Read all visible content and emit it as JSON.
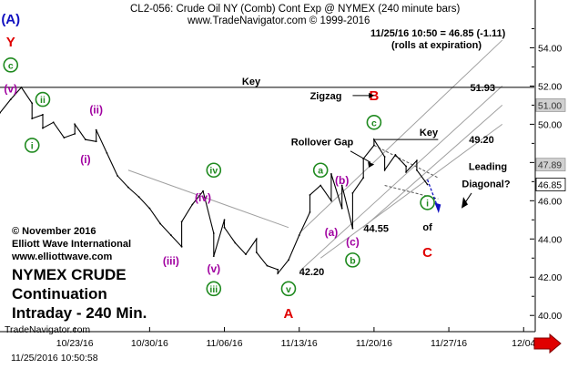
{
  "header": {
    "title": "CL2-056:  Crude Oil NY (Comb) Cont Exp @ NYMEX  (240 minute bars)",
    "copyright": "www.TradeNavigator.com © 1999-2016",
    "last_bar": "11/25/16 10:50 = 46.85 (-1.11)",
    "rolls": "(rolls at expiration)"
  },
  "footer": {
    "brand": "TradeNavigator.com",
    "timestamp": "11/25/2016 10:50:58"
  },
  "credits": {
    "line1": "© November 2016",
    "line2": "Elliott Wave International",
    "line3": "www.elliottwave.com"
  },
  "big_title": {
    "line1": "NYMEX CRUDE",
    "line2": "Continuation",
    "line3": "Intraday - 240 Min."
  },
  "colors": {
    "price_line": "#000000",
    "green_label": "#1f8a1f",
    "magenta_label": "#a000a0",
    "red_label": "#e00000",
    "blue_label": "#1010c0",
    "channel": "#a0a0a0",
    "price_box": "#d0d0d0"
  },
  "chart_data": {
    "type": "line",
    "x_axis": {
      "tick_labels": [
        "10/23/16",
        "10/30/16",
        "11/06/16",
        "11/13/16",
        "11/20/16",
        "11/27/16",
        "12/04"
      ],
      "tick_x": [
        "2016-10-23",
        "2016-10-30",
        "2016-11-06",
        "2016-11-13",
        "2016-11-20",
        "2016-11-27",
        "2016-12-04"
      ],
      "xlim": [
        "2016-10-16",
        "2016-12-05"
      ]
    },
    "y_axis": {
      "tick_labels": [
        "40.00",
        "42.00",
        "44.00",
        "46.00",
        "48.00",
        "50.00",
        "52.00",
        "54.00"
      ],
      "ticks": [
        40,
        42,
        44,
        46,
        48,
        50,
        52,
        54
      ],
      "ylim": [
        39.2,
        56.5
      ]
    },
    "series": [
      {
        "x": [
          "2016-10-16",
          "2016-10-17",
          "2016-10-18",
          "2016-10-19",
          "2016-10-19",
          "2016-10-20",
          "2016-10-20",
          "2016-10-21",
          "2016-10-22",
          "2016-10-23",
          "2016-10-23",
          "2016-10-24",
          "2016-10-25",
          "2016-10-25",
          "2016-10-26",
          "2016-10-27",
          "2016-10-28",
          "2016-10-29",
          "2016-10-30",
          "2016-10-31",
          "2016-11-01",
          "2016-11-02",
          "2016-11-02",
          "2016-11-03",
          "2016-11-04",
          "2016-11-05",
          "2016-11-05",
          "2016-11-06",
          "2016-11-06",
          "2016-11-07",
          "2016-11-08",
          "2016-11-09",
          "2016-11-09",
          "2016-11-10",
          "2016-11-11",
          "2016-11-11",
          "2016-11-12",
          "2016-11-13",
          "2016-11-14",
          "2016-11-14",
          "2016-11-15",
          "2016-11-16",
          "2016-11-16",
          "2016-11-17",
          "2016-11-17",
          "2016-11-18",
          "2016-11-18",
          "2016-11-19",
          "2016-11-19",
          "2016-11-20",
          "2016-11-20",
          "2016-11-21",
          "2016-11-21",
          "2016-11-22",
          "2016-11-23",
          "2016-11-23",
          "2016-11-24",
          "2016-11-24",
          "2016-11-25"
        ],
        "y": [
          50.6,
          51.3,
          51.93,
          51.1,
          50.3,
          50.5,
          49.8,
          50.1,
          49.3,
          49.5,
          50.0,
          49.2,
          49.1,
          49.7,
          48.5,
          47.3,
          46.7,
          46.2,
          45.6,
          44.8,
          44.2,
          43.6,
          44.9,
          45.8,
          46.5,
          44.3,
          43.1,
          45.0,
          44.6,
          43.8,
          43.2,
          44.0,
          43.3,
          42.6,
          42.4,
          42.2,
          42.9,
          44.2,
          45.4,
          46.3,
          46.8,
          46.0,
          47.4,
          45.6,
          46.8,
          44.55,
          46.4,
          47.2,
          48.2,
          48.9,
          49.2,
          48.3,
          47.6,
          48.4,
          47.8,
          47.5,
          48.1,
          47.6,
          46.85
        ]
      }
    ],
    "horizontal_lines": [
      {
        "label": "Key",
        "value": 51.93,
        "value_label": "51.93"
      },
      {
        "label": "Key",
        "value": 49.2,
        "value_label": "49.20"
      }
    ],
    "price_boxes": [
      {
        "value": 51.0,
        "label": "51.00"
      },
      {
        "value": 47.89,
        "label": "47.89"
      },
      {
        "value": 46.85,
        "label": "46.85"
      }
    ],
    "annotations": {
      "zigzag": "Zigzag",
      "rollover_gap": "Rollover Gap",
      "leading_diagonal_1": "Leading",
      "leading_diagonal_2": "Diagonal?",
      "low_42": "42.20",
      "low_44": "44.55",
      "of": "of"
    },
    "wave_labels": [
      {
        "text": "(A)",
        "x": "2016-10-17",
        "y": 55.5,
        "color": "blue",
        "style": "plain"
      },
      {
        "text": "Y",
        "x": "2016-10-17",
        "y": 54.3,
        "color": "red",
        "style": "plain"
      },
      {
        "text": "c",
        "x": "2016-10-17",
        "y": 53.1,
        "color": "green",
        "style": "circle"
      },
      {
        "text": "(v)",
        "x": "2016-10-17",
        "y": 51.9,
        "color": "magenta",
        "style": "plain"
      },
      {
        "text": "ii",
        "x": "2016-10-20",
        "y": 51.3,
        "color": "green",
        "style": "circle"
      },
      {
        "text": "i",
        "x": "2016-10-19",
        "y": 48.9,
        "color": "green",
        "style": "circle"
      },
      {
        "text": "(ii)",
        "x": "2016-10-25",
        "y": 50.8,
        "color": "magenta",
        "style": "plain"
      },
      {
        "text": "(i)",
        "x": "2016-10-24",
        "y": 48.2,
        "color": "magenta",
        "style": "plain"
      },
      {
        "text": "(iv)",
        "x": "2016-11-04",
        "y": 46.2,
        "color": "magenta",
        "style": "plain"
      },
      {
        "text": "iv",
        "x": "2016-11-05",
        "y": 47.6,
        "color": "green",
        "style": "circle"
      },
      {
        "text": "(iii)",
        "x": "2016-11-01",
        "y": 42.9,
        "color": "magenta",
        "style": "plain"
      },
      {
        "text": "(v)",
        "x": "2016-11-05",
        "y": 42.5,
        "color": "magenta",
        "style": "plain"
      },
      {
        "text": "iii",
        "x": "2016-11-05",
        "y": 41.4,
        "color": "green",
        "style": "circle"
      },
      {
        "text": "v",
        "x": "2016-11-12",
        "y": 41.4,
        "color": "green",
        "style": "circle"
      },
      {
        "text": "A",
        "x": "2016-11-12",
        "y": 40.1,
        "color": "red",
        "style": "plain"
      },
      {
        "text": "a",
        "x": "2016-11-15",
        "y": 47.6,
        "color": "green",
        "style": "circle"
      },
      {
        "text": "(b)",
        "x": "2016-11-17",
        "y": 47.1,
        "color": "magenta",
        "style": "plain"
      },
      {
        "text": "(a)",
        "x": "2016-11-16",
        "y": 44.4,
        "color": "magenta",
        "style": "plain"
      },
      {
        "text": "(c)",
        "x": "2016-11-18",
        "y": 43.9,
        "color": "magenta",
        "style": "plain"
      },
      {
        "text": "b",
        "x": "2016-11-18",
        "y": 42.9,
        "color": "green",
        "style": "circle"
      },
      {
        "text": "c",
        "x": "2016-11-20",
        "y": 50.1,
        "color": "green",
        "style": "circle"
      },
      {
        "text": "B",
        "x": "2016-11-20",
        "y": 51.5,
        "color": "red",
        "style": "plain"
      },
      {
        "text": "i",
        "x": "2016-11-25",
        "y": 45.9,
        "color": "green",
        "style": "circle"
      },
      {
        "text": "C",
        "x": "2016-11-25",
        "y": 43.3,
        "color": "red",
        "style": "plain"
      }
    ]
  }
}
